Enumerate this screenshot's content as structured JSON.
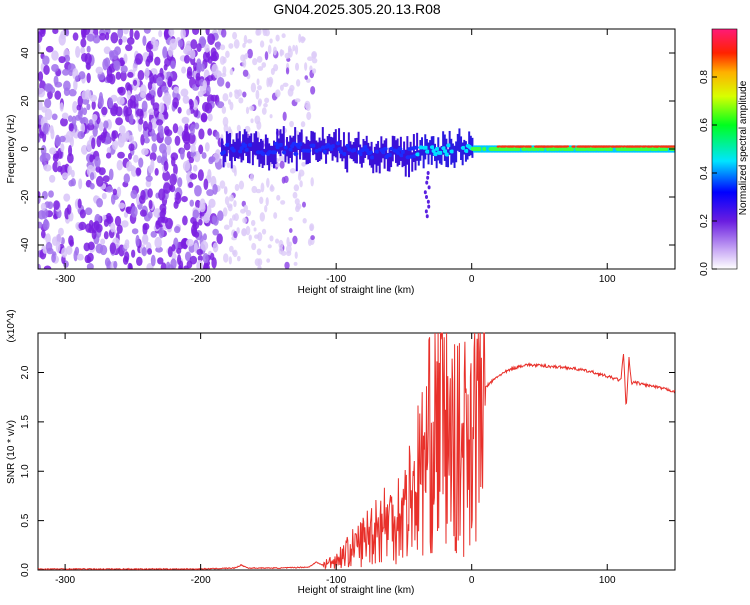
{
  "figure_title": "GN04.2025.305.20.13.R08",
  "chart_data": [
    {
      "type": "heatmap",
      "title": "GN04.2025.305.20.13.R08",
      "xlabel": "Height of straight line (km)",
      "ylabel": "Frequency (Hz)",
      "xlim": [
        -320,
        150
      ],
      "ylim": [
        -50,
        50
      ],
      "x_ticks": [
        -300,
        -200,
        -100,
        0,
        100
      ],
      "x_tick_labels": [
        "-300",
        "-200",
        "-100",
        "0",
        "100"
      ],
      "y_ticks": [
        -40,
        -20,
        0,
        20,
        40
      ],
      "y_tick_labels": [
        "-40",
        "-20",
        "0",
        "20",
        "40"
      ],
      "colorbar": {
        "label": "Normalized spectral amplitude",
        "range": [
          0,
          1
        ],
        "ticks": [
          0.0,
          0.2,
          0.4,
          0.6,
          0.8
        ],
        "tick_labels": [
          "0.0",
          "0.2",
          "0.4",
          "0.6",
          "0.8"
        ]
      },
      "description_regions": [
        {
          "x_range": [
            -320,
            -185
          ],
          "freq_range": [
            -50,
            50
          ],
          "amplitude": 0.15,
          "kind": "broadband noise"
        },
        {
          "x_range": [
            -185,
            -115
          ],
          "freq_range": [
            -50,
            50
          ],
          "amplitude": 0.05,
          "kind": "sparse noise"
        },
        {
          "x_range": [
            -185,
            150
          ],
          "freq_center": 0,
          "amplitude_peak": 0.95,
          "kind": "narrowband signal near 0 Hz"
        }
      ]
    },
    {
      "type": "line",
      "title": "",
      "xlabel": "Height of straight line (km)",
      "ylabel": "SNR (10 * v/v)",
      "y_multiplier": "(x10^4)",
      "xlim": [
        -320,
        150
      ],
      "ylim": [
        0,
        2.4
      ],
      "x_ticks": [
        -300,
        -200,
        -100,
        0,
        100
      ],
      "x_tick_labels": [
        "-300",
        "-200",
        "-100",
        "0",
        "100"
      ],
      "y_ticks": [
        0,
        0.5,
        1.0,
        1.5,
        2.0
      ],
      "y_tick_labels": [
        "0.0",
        "0.5",
        "1.0",
        "1.5",
        "2.0"
      ],
      "series": [
        {
          "name": "SNR",
          "color": "#e8302a",
          "x": [
            -320,
            -250,
            -200,
            -175,
            -170,
            -165,
            -140,
            -120,
            -115,
            -110,
            -100,
            -90,
            -80,
            -70,
            -60,
            -50,
            -40,
            -35,
            -30,
            -25,
            -20,
            -15,
            -10,
            -5,
            0,
            5,
            10,
            20,
            30,
            40,
            50,
            60,
            70,
            80,
            90,
            100,
            105,
            110,
            112,
            114,
            116,
            118,
            120,
            130,
            140,
            150
          ],
          "values": [
            0.01,
            0.01,
            0.01,
            0.02,
            0.05,
            0.02,
            0.02,
            0.03,
            0.08,
            0.05,
            0.1,
            0.2,
            0.3,
            0.45,
            0.5,
            0.6,
            0.9,
            1.1,
            1.3,
            1.6,
            1.45,
            1.25,
            1.2,
            1.3,
            1.6,
            1.75,
            1.85,
            1.97,
            2.04,
            2.08,
            2.07,
            2.06,
            2.05,
            2.03,
            2.0,
            1.96,
            1.94,
            1.92,
            2.2,
            1.62,
            2.15,
            1.88,
            1.9,
            1.87,
            1.84,
            1.81
          ]
        }
      ]
    }
  ],
  "colors": {
    "line": "#e8302a",
    "noise": "#7a1fe0"
  }
}
